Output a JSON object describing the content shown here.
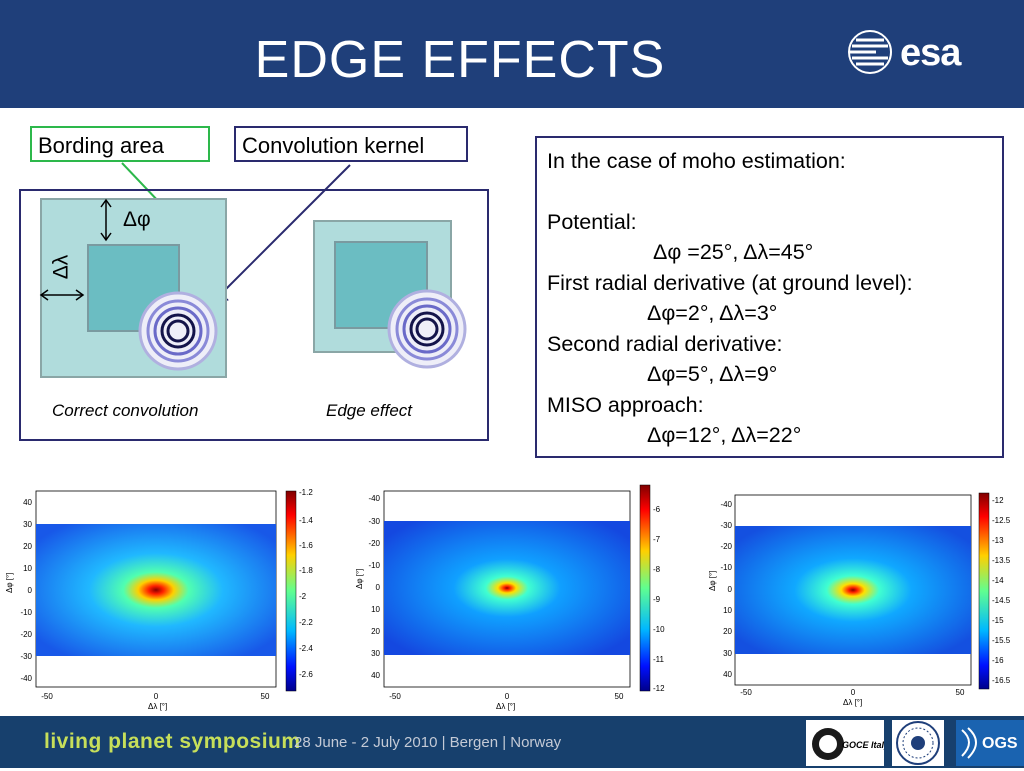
{
  "header": {
    "title": "EDGE EFFECTS",
    "logo_text": "esa"
  },
  "labels": {
    "bording_area": "Bording area",
    "convolution_kernel": "Convolution kernel",
    "delta_phi": "Δφ",
    "delta_lambda": "Δλ"
  },
  "captions": {
    "correct": "Correct convolution",
    "edge": "Edge effect"
  },
  "info": {
    "intro": "In the case of moho estimation:",
    "potential_label": "Potential:",
    "potential_values": "Δφ =25°, Δλ=45°",
    "first_label": "First radial derivative (at ground level):",
    "first_values": "Δφ=2°, Δλ=3°",
    "second_label": "Second radial derivative:",
    "second_values": "Δφ=5°, Δλ=9°",
    "miso_label": "MISO approach:",
    "miso_values": "Δφ=12°, Δλ=22°"
  },
  "plots": [
    {
      "ylabel": "Δφ [°]",
      "xlabel": "Δλ [°]",
      "xticks": [
        "-50",
        "0",
        "50"
      ],
      "yticks": [
        "40",
        "30",
        "20",
        "10",
        "0",
        "-10",
        "-20",
        "-30",
        "-40"
      ],
      "cbar_ticks": [
        "-1.2",
        "-1.4",
        "-1.6",
        "-1.8",
        "-2",
        "-2.2",
        "-2.4",
        "-2.6"
      ]
    },
    {
      "ylabel": "Δφ [°]",
      "xlabel": "Δλ [°]",
      "xticks": [
        "-50",
        "0",
        "50"
      ],
      "yticks": [
        "-40",
        "-30",
        "-20",
        "-10",
        "0",
        "10",
        "20",
        "30",
        "40"
      ],
      "cbar_ticks": [
        "-6",
        "-7",
        "-8",
        "-9",
        "-10",
        "-11",
        "-12"
      ]
    },
    {
      "ylabel": "Δφ [°]",
      "xlabel": "Δλ [°]",
      "xticks": [
        "-50",
        "0",
        "50"
      ],
      "yticks": [
        "-40",
        "-30",
        "-20",
        "-10",
        "0",
        "10",
        "20",
        "30",
        "40"
      ],
      "cbar_ticks": [
        "-12",
        "-12.5",
        "-13",
        "-13.5",
        "-14",
        "-14.5",
        "-15",
        "-15.5",
        "-16",
        "-16.5"
      ]
    }
  ],
  "footer": {
    "symposium": "living planet symposium",
    "dates": "28 June - 2 July 2010 | Bergen | Norway",
    "goce_logo": "GOCE Italy",
    "ogs_logo": "OGS"
  }
}
